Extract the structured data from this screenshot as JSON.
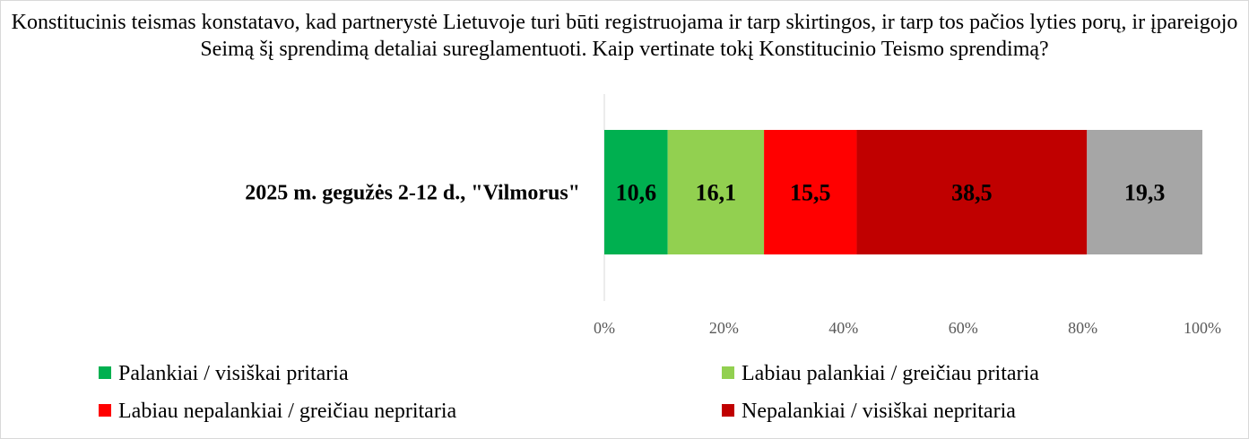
{
  "chart_data": {
    "type": "bar",
    "orientation": "horizontal",
    "stacked": true,
    "percent_stacked": true,
    "title": "Konstitucinis teismas konstatavo, kad partnerystė Lietuvoje turi būti registruojama ir tarp skirtingos, ir tarp tos pačios lyties porų, ir įpareigojo Seimą šį sprendimą detaliai sureglamentuoti. Kaip vertinate tokį Konstitucinio Teismo sprendimą?",
    "categories": [
      "2025 m. gegužės 2-12 d., \"Vilmorus\""
    ],
    "series": [
      {
        "name": "Palankiai / visiškai pritaria",
        "color": "#00b050",
        "values": [
          10.6
        ],
        "label": "10,6"
      },
      {
        "name": "Labiau palankiai / greičiau pritaria",
        "color": "#92d050",
        "values": [
          16.1
        ],
        "label": "16,1"
      },
      {
        "name": "Labiau nepalankiai / greičiau nepritaria",
        "color": "#ff0000",
        "values": [
          15.5
        ],
        "label": "15,5"
      },
      {
        "name": "Nepalankiai / visiškai nepritaria",
        "color": "#c00000",
        "values": [
          38.5
        ],
        "label": "38,5"
      },
      {
        "name": "",
        "color": "#a6a6a6",
        "values": [
          19.3
        ],
        "label": "19,3"
      }
    ],
    "x_ticks": [
      "0%",
      "20%",
      "40%",
      "60%",
      "80%",
      "100%"
    ],
    "xlim": [
      0,
      100
    ],
    "grid": false,
    "legend_position": "bottom"
  }
}
